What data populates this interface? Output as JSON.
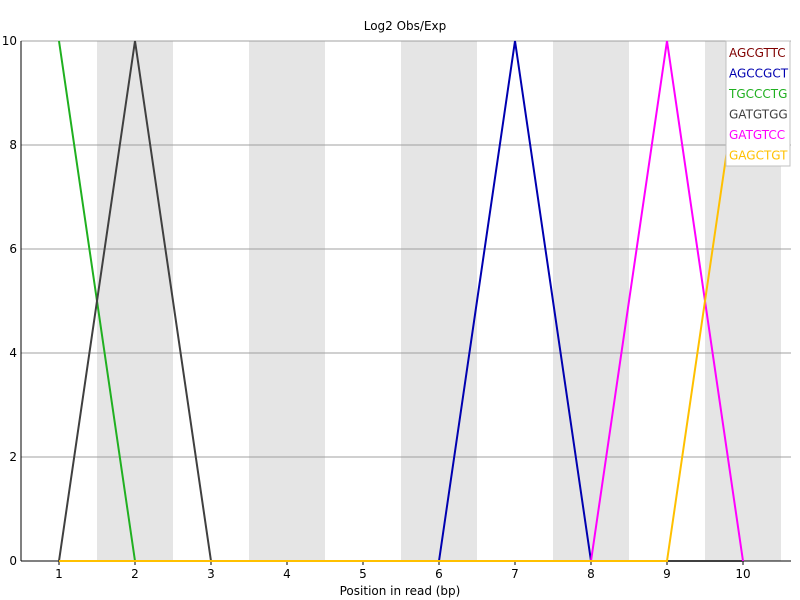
{
  "chart_data": {
    "type": "line",
    "title": "Log2 Obs/Exp",
    "xlabel": "Position in read (bp)",
    "ylabel": "",
    "x": [
      1,
      2,
      3,
      4,
      5,
      6,
      7,
      8,
      9,
      10
    ],
    "xlim": [
      1,
      10
    ],
    "ylim": [
      0,
      10
    ],
    "yticks": [
      0,
      2,
      4,
      6,
      8,
      10
    ],
    "grid": true,
    "legend_position": "top-right",
    "band_color": "#e5e5e5",
    "series": [
      {
        "name": "AGCGTTC",
        "color": "#800000",
        "values": [
          0,
          0,
          0,
          0,
          0,
          0,
          0,
          0,
          0,
          0
        ]
      },
      {
        "name": "AGCCGCT",
        "color": "#0000b0",
        "values": [
          0,
          0,
          0,
          0,
          0,
          0,
          10,
          0,
          0,
          0
        ]
      },
      {
        "name": "TGCCCTG",
        "color": "#20b020",
        "values": [
          10,
          0,
          0,
          0,
          0,
          0,
          0,
          0,
          0,
          0
        ]
      },
      {
        "name": "GATGTGG",
        "color": "#404040",
        "values": [
          0,
          10,
          0,
          0,
          0,
          0,
          0,
          0,
          0,
          0
        ]
      },
      {
        "name": "GATGTCC",
        "color": "#ff00ff",
        "values": [
          0,
          0,
          0,
          0,
          0,
          0,
          0,
          0,
          10,
          0
        ]
      },
      {
        "name": "GAGCTGT",
        "color": "#ffc000",
        "values": [
          0,
          0,
          0,
          0,
          0,
          0,
          0,
          0,
          0,
          10
        ]
      }
    ]
  }
}
